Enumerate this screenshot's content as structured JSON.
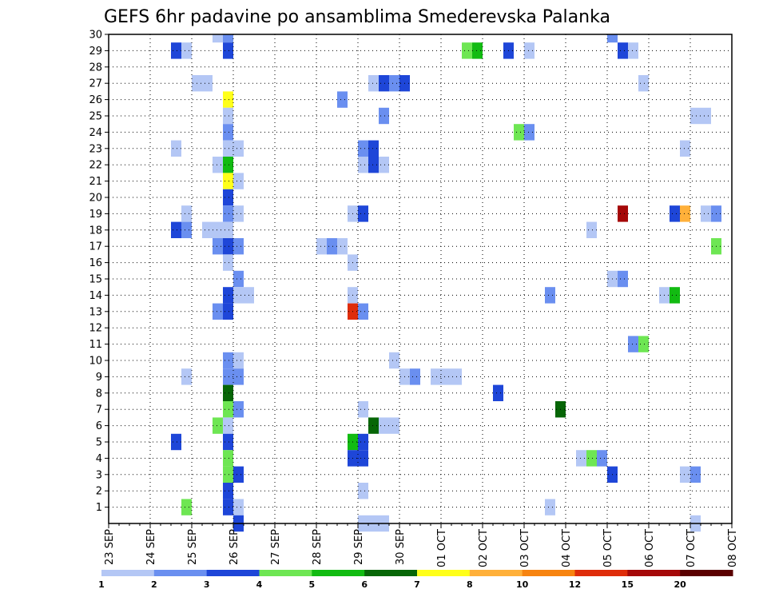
{
  "chart_data": {
    "type": "heatmap",
    "title": "GEFS 6hr padavine po ansamblima Smederevska Palanka",
    "y_ticks": [
      1,
      2,
      3,
      4,
      5,
      6,
      7,
      8,
      9,
      10,
      11,
      12,
      13,
      14,
      15,
      16,
      17,
      18,
      19,
      20,
      21,
      22,
      23,
      24,
      25,
      26,
      27,
      28,
      29,
      30
    ],
    "ylim": [
      0,
      30
    ],
    "x_ticks": [
      "23 SEP",
      "24 SEP",
      "25 SEP",
      "26 SEP",
      "27 SEP",
      "28 SEP",
      "29 SEP",
      "30 SEP",
      "01 OCT",
      "02 OCT",
      "03 OCT",
      "04 OCT",
      "05 OCT",
      "06 OCT",
      "07 OCT",
      "08 OCT"
    ],
    "xlim_days": [
      0,
      15
    ],
    "grid": true,
    "legend": {
      "position": "bottom",
      "colors": [
        "#b4c7f5",
        "#6a8ff0",
        "#1e46d8",
        "#6ee653",
        "#12bb12",
        "#076607",
        "#ffff1a",
        "#ffb03a",
        "#f78410",
        "#df2d0a",
        "#a50808",
        "#5a0000"
      ],
      "labels": [
        "1",
        "2",
        "3",
        "4",
        "5",
        "6",
        "7",
        "8",
        "10",
        "12",
        "15",
        "20"
      ]
    },
    "cells": [
      {
        "member": 30,
        "t": 2.5,
        "v": 1
      },
      {
        "member": 30,
        "t": 2.75,
        "v": 2
      },
      {
        "member": 30,
        "t": 12,
        "v": 2
      },
      {
        "member": 29,
        "t": 1.5,
        "v": 3
      },
      {
        "member": 29,
        "t": 1.75,
        "v": 1
      },
      {
        "member": 29,
        "t": 2.75,
        "v": 3
      },
      {
        "member": 29,
        "t": 8.5,
        "v": 4
      },
      {
        "member": 29,
        "t": 8.75,
        "v": 5
      },
      {
        "member": 29,
        "t": 9.5,
        "v": 3
      },
      {
        "member": 29,
        "t": 10,
        "v": 1
      },
      {
        "member": 29,
        "t": 12.25,
        "v": 3
      },
      {
        "member": 29,
        "t": 12.5,
        "v": 1
      },
      {
        "member": 27,
        "t": 2,
        "v": 1
      },
      {
        "member": 27,
        "t": 2.25,
        "v": 1
      },
      {
        "member": 27,
        "t": 6.25,
        "v": 1
      },
      {
        "member": 27,
        "t": 6.5,
        "v": 3
      },
      {
        "member": 27,
        "t": 6.75,
        "v": 2
      },
      {
        "member": 27,
        "t": 7,
        "v": 3
      },
      {
        "member": 27,
        "t": 12.75,
        "v": 1
      },
      {
        "member": 26,
        "t": 2.75,
        "v": 7
      },
      {
        "member": 26,
        "t": 5.5,
        "v": 2
      },
      {
        "member": 25,
        "t": 2.75,
        "v": 1
      },
      {
        "member": 25,
        "t": 6.5,
        "v": 2
      },
      {
        "member": 25,
        "t": 14,
        "v": 1
      },
      {
        "member": 25,
        "t": 14.25,
        "v": 1
      },
      {
        "member": 24,
        "t": 2.75,
        "v": 2
      },
      {
        "member": 24,
        "t": 9.75,
        "v": 4
      },
      {
        "member": 24,
        "t": 10,
        "v": 2
      },
      {
        "member": 23,
        "t": 1.5,
        "v": 1
      },
      {
        "member": 23,
        "t": 2.75,
        "v": 1
      },
      {
        "member": 23,
        "t": 3,
        "v": 1
      },
      {
        "member": 23,
        "t": 6,
        "v": 2
      },
      {
        "member": 23,
        "t": 6.25,
        "v": 3
      },
      {
        "member": 23,
        "t": 13.75,
        "v": 1
      },
      {
        "member": 22,
        "t": 2.5,
        "v": 1
      },
      {
        "member": 22,
        "t": 2.75,
        "v": 5
      },
      {
        "member": 22,
        "t": 6,
        "v": 1
      },
      {
        "member": 22,
        "t": 6.25,
        "v": 3
      },
      {
        "member": 22,
        "t": 6.5,
        "v": 1
      },
      {
        "member": 21,
        "t": 2.75,
        "v": 7
      },
      {
        "member": 21,
        "t": 3,
        "v": 1
      },
      {
        "member": 20,
        "t": 2.75,
        "v": 3
      },
      {
        "member": 19,
        "t": 1.75,
        "v": 1
      },
      {
        "member": 19,
        "t": 2.75,
        "v": 2
      },
      {
        "member": 19,
        "t": 3,
        "v": 1
      },
      {
        "member": 19,
        "t": 5.75,
        "v": 1
      },
      {
        "member": 19,
        "t": 6,
        "v": 3
      },
      {
        "member": 19,
        "t": 12.25,
        "v": 15
      },
      {
        "member": 19,
        "t": 13.5,
        "v": 3
      },
      {
        "member": 19,
        "t": 13.75,
        "v": 8
      },
      {
        "member": 19,
        "t": 14.25,
        "v": 1
      },
      {
        "member": 19,
        "t": 14.5,
        "v": 2
      },
      {
        "member": 18,
        "t": 1.5,
        "v": 3
      },
      {
        "member": 18,
        "t": 1.75,
        "v": 2
      },
      {
        "member": 18,
        "t": 2.25,
        "v": 1
      },
      {
        "member": 18,
        "t": 2.5,
        "v": 1
      },
      {
        "member": 18,
        "t": 2.75,
        "v": 1
      },
      {
        "member": 18,
        "t": 11.5,
        "v": 1
      },
      {
        "member": 17,
        "t": 2.5,
        "v": 2
      },
      {
        "member": 17,
        "t": 2.75,
        "v": 3
      },
      {
        "member": 17,
        "t": 3,
        "v": 2
      },
      {
        "member": 17,
        "t": 5,
        "v": 1
      },
      {
        "member": 17,
        "t": 5.25,
        "v": 2
      },
      {
        "member": 17,
        "t": 5.5,
        "v": 1
      },
      {
        "member": 17,
        "t": 14.5,
        "v": 4
      },
      {
        "member": 16,
        "t": 2.75,
        "v": 1
      },
      {
        "member": 16,
        "t": 5.75,
        "v": 1
      },
      {
        "member": 15,
        "t": 3,
        "v": 2
      },
      {
        "member": 15,
        "t": 12,
        "v": 1
      },
      {
        "member": 15,
        "t": 12.25,
        "v": 2
      },
      {
        "member": 14,
        "t": 2.75,
        "v": 3
      },
      {
        "member": 14,
        "t": 3,
        "v": 1
      },
      {
        "member": 14,
        "t": 3.25,
        "v": 1
      },
      {
        "member": 14,
        "t": 5.75,
        "v": 1
      },
      {
        "member": 14,
        "t": 10.5,
        "v": 2
      },
      {
        "member": 14,
        "t": 13.25,
        "v": 1
      },
      {
        "member": 14,
        "t": 13.5,
        "v": 5
      },
      {
        "member": 13,
        "t": 2.5,
        "v": 2
      },
      {
        "member": 13,
        "t": 2.75,
        "v": 3
      },
      {
        "member": 13,
        "t": 5.75,
        "v": 12
      },
      {
        "member": 13,
        "t": 6,
        "v": 2
      },
      {
        "member": 11,
        "t": 12.5,
        "v": 2
      },
      {
        "member": 11,
        "t": 12.75,
        "v": 4
      },
      {
        "member": 10,
        "t": 2.75,
        "v": 2
      },
      {
        "member": 10,
        "t": 3,
        "v": 1
      },
      {
        "member": 10,
        "t": 6.75,
        "v": 1
      },
      {
        "member": 9,
        "t": 1.75,
        "v": 1
      },
      {
        "member": 9,
        "t": 2.75,
        "v": 2
      },
      {
        "member": 9,
        "t": 3,
        "v": 2
      },
      {
        "member": 9,
        "t": 7,
        "v": 1
      },
      {
        "member": 9,
        "t": 7.25,
        "v": 2
      },
      {
        "member": 9,
        "t": 7.75,
        "v": 1
      },
      {
        "member": 9,
        "t": 8,
        "v": 1
      },
      {
        "member": 9,
        "t": 8.25,
        "v": 1
      },
      {
        "member": 8,
        "t": 2.75,
        "v": 6
      },
      {
        "member": 8,
        "t": 9.25,
        "v": 3
      },
      {
        "member": 7,
        "t": 2.75,
        "v": 4
      },
      {
        "member": 7,
        "t": 3,
        "v": 2
      },
      {
        "member": 7,
        "t": 6,
        "v": 1
      },
      {
        "member": 7,
        "t": 10.75,
        "v": 6
      },
      {
        "member": 6,
        "t": 2.5,
        "v": 4
      },
      {
        "member": 6,
        "t": 2.75,
        "v": 1
      },
      {
        "member": 6,
        "t": 6.25,
        "v": 6
      },
      {
        "member": 6,
        "t": 6.5,
        "v": 1
      },
      {
        "member": 6,
        "t": 6.75,
        "v": 1
      },
      {
        "member": 5,
        "t": 1.5,
        "v": 3
      },
      {
        "member": 5,
        "t": 2.75,
        "v": 3
      },
      {
        "member": 5,
        "t": 5.75,
        "v": 5
      },
      {
        "member": 5,
        "t": 6,
        "v": 3
      },
      {
        "member": 4,
        "t": 2.75,
        "v": 4
      },
      {
        "member": 4,
        "t": 5.75,
        "v": 3
      },
      {
        "member": 4,
        "t": 6,
        "v": 3
      },
      {
        "member": 4,
        "t": 11.25,
        "v": 1
      },
      {
        "member": 4,
        "t": 11.5,
        "v": 4
      },
      {
        "member": 4,
        "t": 11.75,
        "v": 2
      },
      {
        "member": 3,
        "t": 2.75,
        "v": 4
      },
      {
        "member": 3,
        "t": 3,
        "v": 3
      },
      {
        "member": 3,
        "t": 12,
        "v": 3
      },
      {
        "member": 3,
        "t": 13.75,
        "v": 1
      },
      {
        "member": 3,
        "t": 14,
        "v": 2
      },
      {
        "member": 2,
        "t": 2.75,
        "v": 3
      },
      {
        "member": 2,
        "t": 6,
        "v": 1
      },
      {
        "member": 1,
        "t": 1.75,
        "v": 4
      },
      {
        "member": 1,
        "t": 2.75,
        "v": 3
      },
      {
        "member": 1,
        "t": 3,
        "v": 1
      },
      {
        "member": 1,
        "t": 10.5,
        "v": 1
      },
      {
        "member": 0,
        "t": 3,
        "v": 3
      },
      {
        "member": 0,
        "t": 6,
        "v": 1
      },
      {
        "member": 0,
        "t": 6.25,
        "v": 1
      },
      {
        "member": 0,
        "t": 6.5,
        "v": 1
      },
      {
        "member": 0,
        "t": 14,
        "v": 1
      }
    ]
  }
}
